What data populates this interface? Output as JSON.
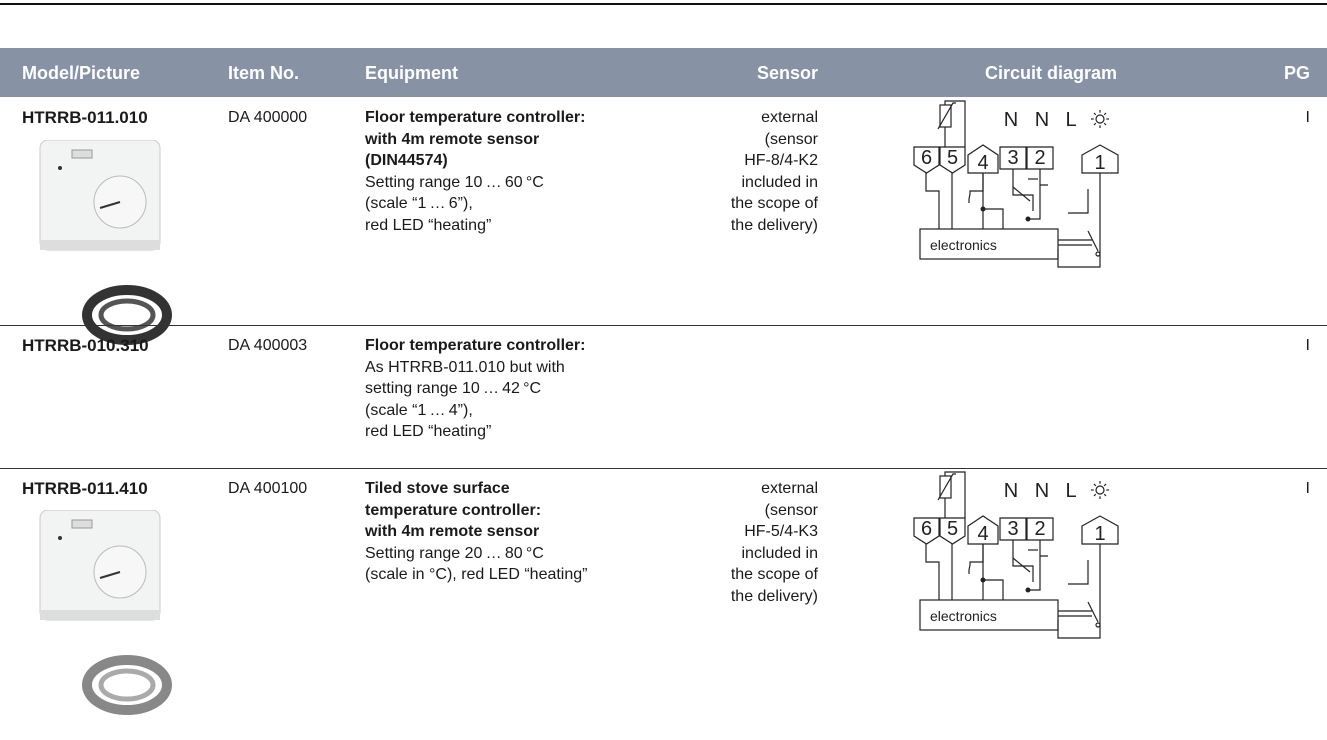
{
  "header": [
    "Model/Picture",
    "Item No.",
    "Equipment",
    "Sensor",
    "Circuit diagram",
    "PG"
  ],
  "rows": [
    {
      "model": "HTRRB-011.010",
      "item_no": "DA 400000",
      "equipment": {
        "bold": [
          "Floor temperature controller:",
          "with 4m remote sensor",
          "(DIN44574)"
        ],
        "regular": [
          "Setting range 10 … 60 °C",
          "(scale “1 … 6”),",
          "red LED “heating”"
        ]
      },
      "sensor": [
        "external",
        "(sensor",
        "HF-8/4-K2",
        "included in",
        "the scope of",
        "the delivery)"
      ],
      "circuit": {
        "supply": [
          "N",
          "N",
          "L"
        ],
        "terminals": [
          "6",
          "5",
          "4",
          "3",
          "2",
          "1"
        ],
        "box": "electronics"
      },
      "pg": "I"
    },
    {
      "model": "HTRRB-010.310",
      "item_no": "DA 400003",
      "equipment": {
        "bold": [
          "Floor temperature controller:"
        ],
        "regular": [
          "As HTRRB-011.010 but with",
          "setting range 10 … 42 °C",
          "(scale “1 … 4”),",
          "red LED “heating”"
        ]
      },
      "pg": "I"
    },
    {
      "model": "HTRRB-011.410",
      "item_no": "DA 400100",
      "equipment": {
        "bold": [
          "Tiled stove surface",
          "temperature controller:",
          "with 4m remote sensor"
        ],
        "regular": [
          "Setting range 20 … 80 °C",
          "(scale in °C), red LED “heating”"
        ]
      },
      "sensor": [
        "external",
        "(sensor",
        "HF-5/4-K3",
        "included in",
        "the scope of",
        "the delivery)"
      ],
      "circuit": {
        "supply": [
          "N",
          "N",
          "L"
        ],
        "terminals": [
          "6",
          "5",
          "4",
          "3",
          "2",
          "1"
        ],
        "box": "electronics"
      },
      "pg": "I"
    }
  ]
}
